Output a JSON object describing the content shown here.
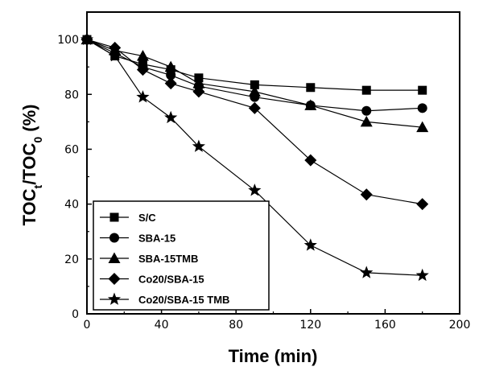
{
  "chart_data": {
    "type": "line",
    "xlabel": "Time (min)",
    "ylabel": {
      "main": "TOC",
      "sub1": "t",
      "mid": "/TOC",
      "sub2": "0",
      "unit": " (%)"
    },
    "xlim": [
      0,
      200
    ],
    "ylim": [
      0,
      110
    ],
    "xticks": [
      0,
      40,
      80,
      120,
      160,
      200
    ],
    "yticks": [
      0,
      20,
      40,
      60,
      80,
      100
    ],
    "grid": false,
    "legend_position": "bottom-left",
    "series": [
      {
        "name": "S/C",
        "marker": "square",
        "x": [
          0,
          15,
          30,
          45,
          60,
          90,
          120,
          150,
          180
        ],
        "y": [
          100,
          94,
          91,
          89,
          86,
          83.5,
          82.5,
          81.5,
          81.5
        ]
      },
      {
        "name": "SBA-15",
        "marker": "circle",
        "x": [
          0,
          15,
          30,
          45,
          60,
          90,
          120,
          150,
          180
        ],
        "y": [
          100,
          95,
          90,
          87,
          83,
          79,
          76,
          74,
          75
        ]
      },
      {
        "name": "SBA-15TMB",
        "marker": "triangle",
        "x": [
          0,
          15,
          30,
          45,
          60,
          90,
          120,
          150,
          180
        ],
        "y": [
          100,
          96,
          94,
          90,
          84,
          81,
          76,
          70,
          68
        ]
      },
      {
        "name": "Co20/SBA-15",
        "marker": "diamond",
        "x": [
          0,
          15,
          30,
          45,
          60,
          90,
          120,
          150,
          180
        ],
        "y": [
          100,
          97,
          89,
          84,
          81,
          75,
          56,
          43.5,
          40
        ]
      },
      {
        "name": "Co20/SBA-15 TMB",
        "marker": "star",
        "x": [
          0,
          15,
          30,
          45,
          60,
          90,
          120,
          150,
          180
        ],
        "y": [
          100,
          94,
          79,
          71.5,
          61,
          45,
          25,
          15,
          14
        ]
      }
    ]
  }
}
